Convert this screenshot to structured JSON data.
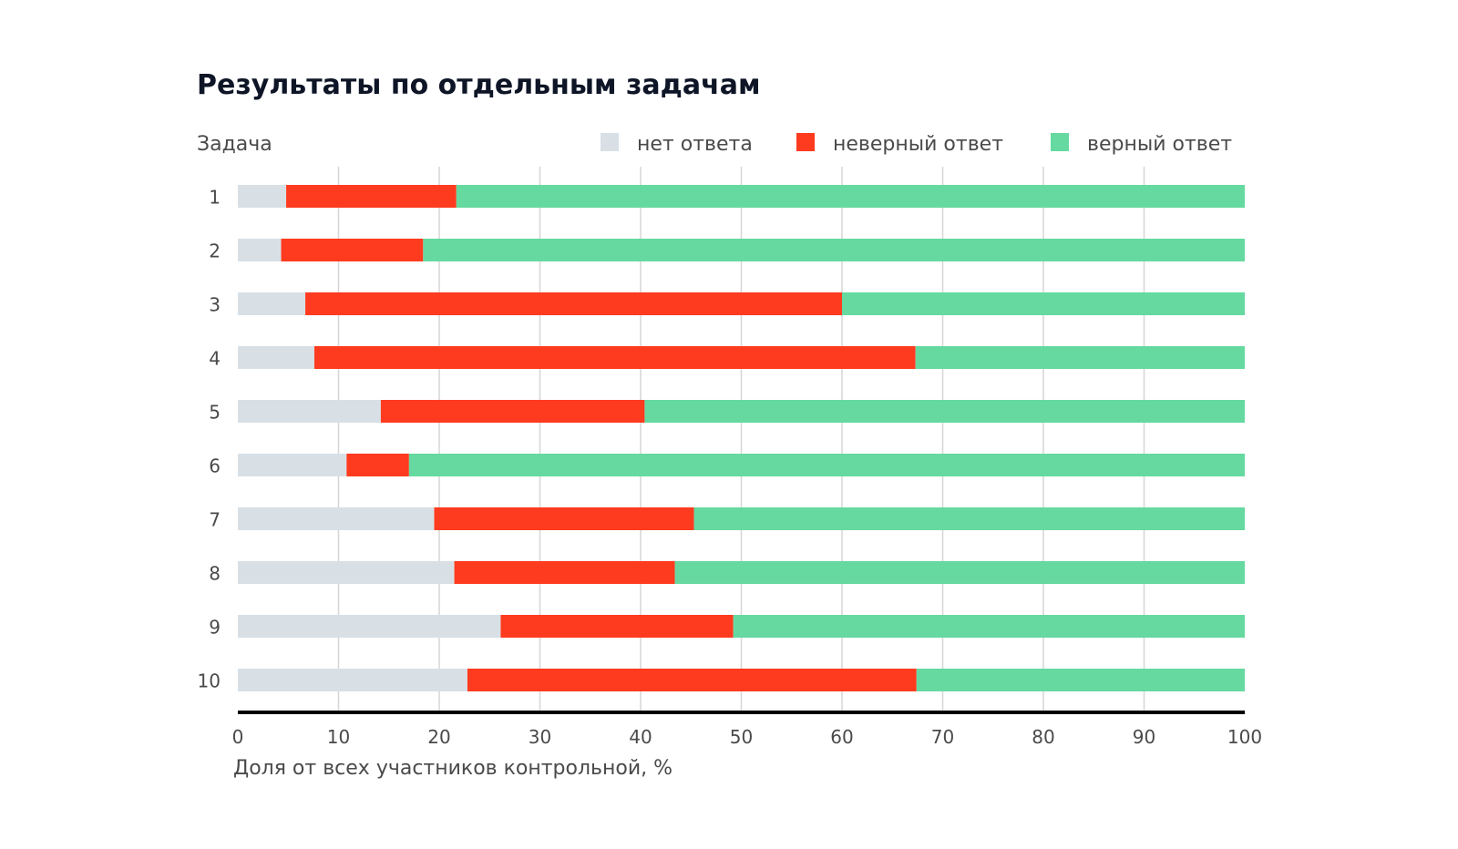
{
  "chart_data": {
    "type": "bar",
    "orientation": "horizontal",
    "stacked": true,
    "title": "Результаты по отдельным задачам",
    "ylabel": "Задача",
    "xlabel": "Доля от всех участников контрольной, %",
    "xlim": [
      0,
      100
    ],
    "xticks": [
      0,
      10,
      20,
      30,
      40,
      50,
      60,
      70,
      80,
      90,
      100
    ],
    "grid": true,
    "legend_position": "top-right",
    "categories": [
      "1",
      "2",
      "3",
      "4",
      "5",
      "6",
      "7",
      "8",
      "9",
      "10"
    ],
    "series": [
      {
        "name": "нет ответа",
        "color": "#d8e0e6",
        "values": [
          4.8,
          4.3,
          6.7,
          7.6,
          14.2,
          10.8,
          19.5,
          21.5,
          26.1,
          22.8
        ]
      },
      {
        "name": "неверный ответ",
        "color": "#ff3b1f",
        "values": [
          16.9,
          14.1,
          53.3,
          59.7,
          26.2,
          6.2,
          25.8,
          21.9,
          23.1,
          44.6
        ]
      },
      {
        "name": "верный ответ",
        "color": "#66d9a0",
        "values": [
          78.3,
          81.6,
          40.0,
          32.7,
          59.6,
          83.0,
          54.7,
          56.6,
          50.8,
          32.6
        ]
      }
    ]
  }
}
